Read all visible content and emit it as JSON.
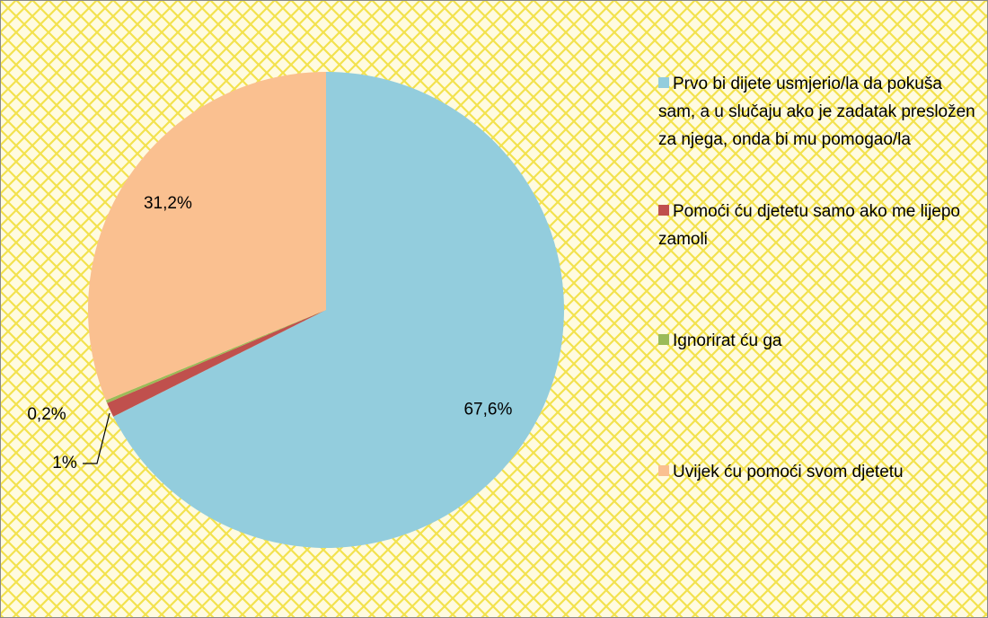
{
  "chart_data": {
    "type": "pie",
    "categories": [
      "Prvo bi dijete usmjerio/la da pokuša sam, a u slučaju ako je zadatak presložen za njega, onda bi mu pomogao/la",
      "Pomoći ću djetetu samo ako me lijepo zamoli",
      "Ignorirat ću ga",
      "Uvijek ću pomoći svom djetetu"
    ],
    "values": [
      67.6,
      1,
      0.2,
      31.2
    ],
    "value_labels": [
      "67,6%",
      "1%",
      "0,2%",
      "31,2%"
    ],
    "colors": [
      "#93cddd",
      "#c0504d",
      "#9bbb59",
      "#fac090"
    ],
    "legend": "right"
  }
}
